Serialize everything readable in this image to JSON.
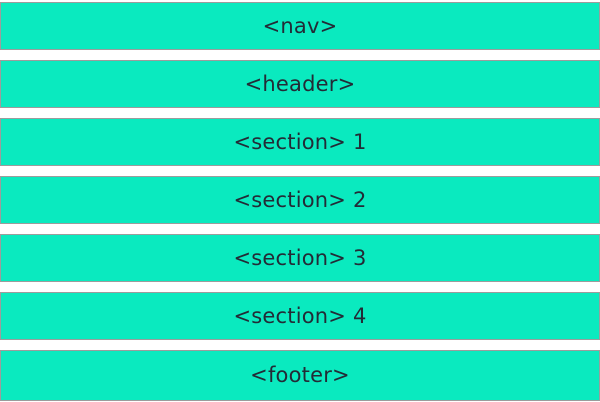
{
  "theme": {
    "page_background": "#ffffff",
    "block_fill": "#0aeabf",
    "block_border": "#9c9c9c",
    "text_color": "#232b36"
  },
  "blocks": [
    {
      "name": "nav",
      "label": "<nav>"
    },
    {
      "name": "header",
      "label": "<header>"
    },
    {
      "name": "section-1",
      "label": "<section> 1"
    },
    {
      "name": "section-2",
      "label": "<section> 2"
    },
    {
      "name": "section-3",
      "label": "<section> 3"
    },
    {
      "name": "section-4",
      "label": "<section> 4"
    },
    {
      "name": "footer",
      "label": "<footer>"
    }
  ]
}
